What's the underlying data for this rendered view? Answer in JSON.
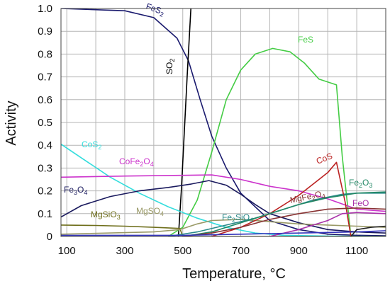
{
  "chart_data": {
    "type": "line",
    "title": "",
    "xlabel": "Temperature, °C",
    "ylabel": "Activity",
    "xlim": [
      80,
      1200
    ],
    "ylim": [
      0,
      1.0
    ],
    "x_ticks": [
      {
        "value": 100,
        "label": "100"
      },
      {
        "value": 300,
        "label": "300"
      },
      {
        "value": 500,
        "label": "500"
      },
      {
        "value": 700,
        "label": "700"
      },
      {
        "value": 900,
        "label": "900"
      },
      {
        "value": 1100,
        "label": "1100"
      }
    ],
    "y_ticks": [
      {
        "value": 0,
        "label": "0"
      },
      {
        "value": 0.1,
        "label": "0.1"
      },
      {
        "value": 0.2,
        "label": "0.2"
      },
      {
        "value": 0.3,
        "label": "0.3"
      },
      {
        "value": 0.4,
        "label": "0.4"
      },
      {
        "value": 0.5,
        "label": "0.5"
      },
      {
        "value": 0.6,
        "label": "0.6"
      },
      {
        "value": 0.7,
        "label": "0.7"
      },
      {
        "value": 0.8,
        "label": "0.8"
      },
      {
        "value": 0.9,
        "label": "0.9"
      },
      {
        "value": 1.0,
        "label": "1.0"
      }
    ],
    "grid": true,
    "legend": "none",
    "series": [
      {
        "key": "fes2",
        "name": "FeS2",
        "label_main": "FeS",
        "label_sub": "2",
        "color": "#1a1a6e",
        "points": [
          [
            80,
            1.0
          ],
          [
            300,
            0.99
          ],
          [
            400,
            0.96
          ],
          [
            480,
            0.87
          ],
          [
            520,
            0.77
          ],
          [
            560,
            0.6
          ],
          [
            600,
            0.44
          ],
          [
            650,
            0.3
          ],
          [
            700,
            0.19
          ],
          [
            800,
            0.07
          ],
          [
            900,
            0.03
          ],
          [
            1000,
            0.01
          ],
          [
            1100,
            0.005
          ],
          [
            1200,
            0.003
          ]
        ]
      },
      {
        "key": "so2",
        "name": "SO2",
        "label_main": "SO",
        "label_sub": "2",
        "color": "#000000",
        "points": [
          [
            485,
            0.0
          ],
          [
            495,
            0.2
          ],
          [
            505,
            0.45
          ],
          [
            515,
            0.7
          ],
          [
            528,
            1.0
          ]
        ]
      },
      {
        "key": "fes",
        "name": "FeS",
        "label_main": "FeS",
        "label_sub": "",
        "color": "#44cc44",
        "points": [
          [
            450,
            0.0
          ],
          [
            500,
            0.04
          ],
          [
            550,
            0.16
          ],
          [
            600,
            0.37
          ],
          [
            650,
            0.6
          ],
          [
            700,
            0.73
          ],
          [
            750,
            0.8
          ],
          [
            810,
            0.825
          ],
          [
            870,
            0.81
          ],
          [
            920,
            0.76
          ],
          [
            970,
            0.69
          ],
          [
            1030,
            0.665
          ],
          [
            1050,
            0.35
          ],
          [
            1080,
            0.0
          ]
        ]
      },
      {
        "key": "cos2",
        "name": "CoS2",
        "label_main": "CoS",
        "label_sub": "2",
        "color": "#33dddd",
        "points": [
          [
            80,
            0.405
          ],
          [
            150,
            0.345
          ],
          [
            250,
            0.26
          ],
          [
            350,
            0.19
          ],
          [
            450,
            0.13
          ],
          [
            550,
            0.08
          ],
          [
            650,
            0.04
          ],
          [
            750,
            0.015
          ],
          [
            850,
            0.005
          ],
          [
            1000,
            0.002
          ],
          [
            1200,
            0.0
          ]
        ]
      },
      {
        "key": "cofe2o4",
        "name": "CoFe2O4",
        "label_main": "CoFe",
        "label_sub": "2",
        "label_main2": "O",
        "label_sub2": "4",
        "color": "#cc33cc",
        "points": [
          [
            80,
            0.26
          ],
          [
            300,
            0.265
          ],
          [
            500,
            0.268
          ],
          [
            600,
            0.27
          ],
          [
            700,
            0.25
          ],
          [
            800,
            0.22
          ],
          [
            900,
            0.2
          ],
          [
            1000,
            0.165
          ],
          [
            1100,
            0.12
          ],
          [
            1200,
            0.11
          ]
        ]
      },
      {
        "key": "fe3o4",
        "name": "Fe3O4",
        "label_main": "Fe",
        "label_sub": "3",
        "label_main2": "O",
        "label_sub2": "4",
        "color": "#1a1a5e",
        "points": [
          [
            80,
            0.085
          ],
          [
            150,
            0.135
          ],
          [
            250,
            0.175
          ],
          [
            350,
            0.2
          ],
          [
            450,
            0.215
          ],
          [
            530,
            0.23
          ],
          [
            590,
            0.245
          ],
          [
            650,
            0.225
          ],
          [
            700,
            0.185
          ],
          [
            750,
            0.14
          ],
          [
            800,
            0.1
          ],
          [
            900,
            0.06
          ],
          [
            1000,
            0.03
          ],
          [
            1100,
            0.02
          ],
          [
            1200,
            0.015
          ]
        ]
      },
      {
        "key": "mgsio3",
        "name": "MgSiO3",
        "label_main": "MgSiO",
        "label_sub": "3",
        "color": "#6e6e1a",
        "points": [
          [
            80,
            0.05
          ],
          [
            200,
            0.048
          ],
          [
            300,
            0.045
          ],
          [
            400,
            0.04
          ],
          [
            490,
            0.035
          ],
          [
            500,
            0.0
          ],
          [
            1200,
            0.0
          ]
        ]
      },
      {
        "key": "mgso4",
        "name": "MgSO4",
        "label_main": "MgSO",
        "label_sub": "4",
        "color": "#999966",
        "points": [
          [
            80,
            0.01
          ],
          [
            400,
            0.02
          ],
          [
            490,
            0.03
          ],
          [
            550,
            0.055
          ],
          [
            600,
            0.07
          ],
          [
            700,
            0.075
          ],
          [
            800,
            0.065
          ],
          [
            900,
            0.055
          ],
          [
            1000,
            0.05
          ],
          [
            1100,
            0.045
          ],
          [
            1200,
            0.04
          ]
        ]
      },
      {
        "key": "fe2sio4",
        "name": "Fe2SiO4",
        "label_main": "Fe",
        "label_sub": "2",
        "label_main2": "SiO",
        "label_sub2": "4",
        "color": "#2a8a8a",
        "points": [
          [
            450,
            0.0
          ],
          [
            550,
            0.02
          ],
          [
            650,
            0.05
          ],
          [
            750,
            0.08
          ],
          [
            850,
            0.12
          ],
          [
            950,
            0.16
          ],
          [
            1050,
            0.185
          ],
          [
            1100,
            0.19
          ],
          [
            1200,
            0.19
          ]
        ]
      },
      {
        "key": "cos",
        "name": "CoS",
        "label_main": "CoS",
        "label_sub": "",
        "color": "#bb2222",
        "points": [
          [
            600,
            0.0
          ],
          [
            700,
            0.04
          ],
          [
            800,
            0.1
          ],
          [
            900,
            0.18
          ],
          [
            1000,
            0.28
          ],
          [
            1030,
            0.325
          ],
          [
            1060,
            0.15
          ],
          [
            1080,
            0.0
          ]
        ]
      },
      {
        "key": "fe2o3",
        "name": "Fe2O3",
        "label_main": "Fe",
        "label_sub": "2",
        "label_main2": "O",
        "label_sub2": "3",
        "color": "#228866",
        "points": [
          [
            500,
            0.0
          ],
          [
            600,
            0.02
          ],
          [
            700,
            0.06
          ],
          [
            800,
            0.1
          ],
          [
            900,
            0.14
          ],
          [
            1000,
            0.17
          ],
          [
            1100,
            0.19
          ],
          [
            1200,
            0.195
          ]
        ]
      },
      {
        "key": "mgfe2o4",
        "name": "MgFe2O4",
        "label_main": "MgFe",
        "label_sub": "2",
        "label_main2": "O",
        "label_sub2": "4",
        "color": "#883333",
        "points": [
          [
            500,
            0.0
          ],
          [
            600,
            0.015
          ],
          [
            700,
            0.04
          ],
          [
            800,
            0.075
          ],
          [
            900,
            0.1
          ],
          [
            1000,
            0.12
          ],
          [
            1100,
            0.125
          ],
          [
            1200,
            0.12
          ]
        ]
      },
      {
        "key": "feo",
        "name": "FeO",
        "label_main": "FeO",
        "label_sub": "",
        "color": "#aa33aa",
        "points": [
          [
            800,
            0.0
          ],
          [
            900,
            0.03
          ],
          [
            1000,
            0.07
          ],
          [
            1050,
            0.1
          ],
          [
            1100,
            0.105
          ],
          [
            1200,
            0.1
          ]
        ]
      },
      {
        "key": "minor1",
        "name": "",
        "label_main": "",
        "label_sub": "",
        "color": "#3333bb",
        "points": [
          [
            80,
            0.005
          ],
          [
            500,
            0.005
          ],
          [
            700,
            0.01
          ],
          [
            900,
            0.015
          ],
          [
            1100,
            0.02
          ],
          [
            1200,
            0.025
          ]
        ]
      },
      {
        "key": "minor2",
        "name": "",
        "label_main": "",
        "label_sub": "",
        "color": "#222222",
        "points": [
          [
            1080,
            0.0
          ],
          [
            1100,
            0.03
          ],
          [
            1150,
            0.04
          ],
          [
            1200,
            0.045
          ]
        ]
      }
    ],
    "label_positions": {
      "fes2": [
        205,
        12
      ],
      "so2": [
        243,
        105
      ],
      "fes": [
        420,
        60
      ],
      "cos2": [
        115,
        208
      ],
      "cofe2o4": [
        168,
        232
      ],
      "fe3o4": [
        90,
        272
      ],
      "mgsio3": [
        128,
        307
      ],
      "mgso4": [
        192,
        302
      ],
      "fe2sio4": [
        313,
        311
      ],
      "cos": [
        448,
        232
      ],
      "fe2o3": [
        492,
        262
      ],
      "mgfe2o4": [
        410,
        287
      ],
      "feo": [
        497,
        291
      ]
    }
  }
}
